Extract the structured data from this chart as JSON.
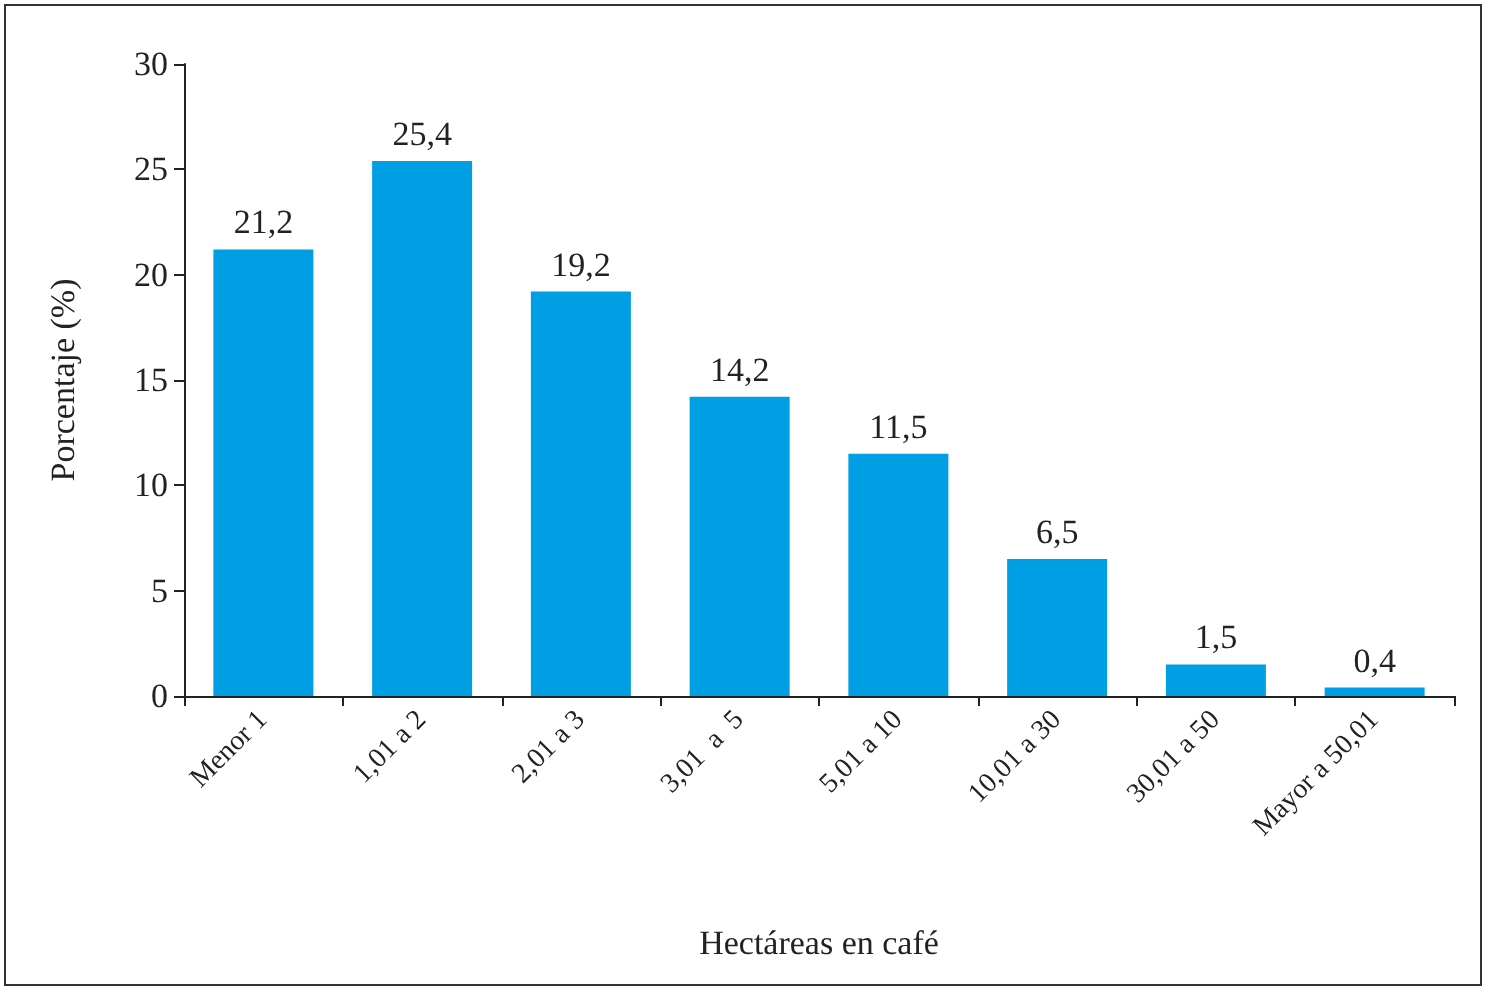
{
  "chart_data": {
    "type": "bar",
    "xlabel": "Hectáreas en café",
    "ylabel": "Porcentaje (%)",
    "categories": [
      "Menor 1",
      "1,01 a 2",
      "2,01 a 3",
      "3,01  a  5",
      "5,01 a 10",
      "10,01 a 30",
      "30,01 a 50",
      "Mayor a 50,01"
    ],
    "values": [
      21.2,
      25.4,
      19.2,
      14.2,
      11.5,
      6.5,
      1.5,
      0.4
    ],
    "value_labels": [
      "21,2",
      "25,4",
      "19,2",
      "14,2",
      "11,5",
      "6,5",
      "1,5",
      "0,4"
    ],
    "color": "#009fe3",
    "ylim": [
      0,
      30
    ],
    "yticks": [
      0,
      5,
      10,
      15,
      20,
      25,
      30
    ],
    "grid": false
  }
}
